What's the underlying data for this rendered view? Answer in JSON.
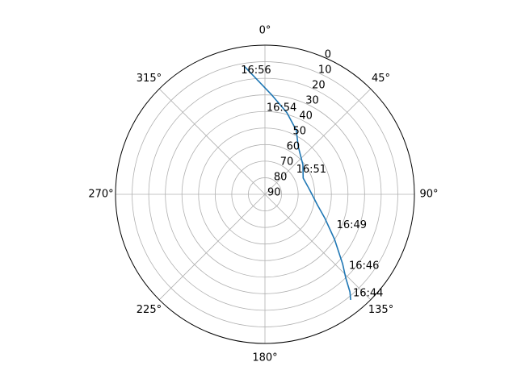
{
  "chart_data": {
    "type": "polar-line",
    "theta_direction": "clockwise",
    "theta_zero": "top",
    "theta_ticks": [
      {
        "deg": 0,
        "label": "0°"
      },
      {
        "deg": 45,
        "label": "45°"
      },
      {
        "deg": 90,
        "label": "90°"
      },
      {
        "deg": 135,
        "label": "135°"
      },
      {
        "deg": 180,
        "label": "180°"
      },
      {
        "deg": 225,
        "label": "225°"
      },
      {
        "deg": 270,
        "label": "270°"
      },
      {
        "deg": 315,
        "label": "315°"
      }
    ],
    "r_axis": {
      "min": 0,
      "max": 90,
      "inverted": true,
      "ticks": [
        "0",
        "10",
        "20",
        "30",
        "40",
        "50",
        "60",
        "70",
        "80",
        "90"
      ]
    },
    "grid": true,
    "series": [
      {
        "color": "#1f77b4",
        "points": [
          {
            "az": 141.0,
            "el": 8
          },
          {
            "az": 139.0,
            "el": 12
          },
          {
            "az": 136.0,
            "el": 20
          },
          {
            "az": 132.0,
            "el": 27
          },
          {
            "az": 123.0,
            "el": 40
          },
          {
            "az": 112.0,
            "el": 51
          },
          {
            "az": 101.0,
            "el": 58
          },
          {
            "az": 84.0,
            "el": 63
          },
          {
            "az": 67.0,
            "el": 65
          },
          {
            "az": 52.0,
            "el": 61
          },
          {
            "az": 35.0,
            "el": 55
          },
          {
            "az": 26.0,
            "el": 47
          },
          {
            "az": 15.0,
            "el": 39
          },
          {
            "az": 4.0,
            "el": 30
          },
          {
            "az": -9.0,
            "el": 12
          }
        ]
      }
    ],
    "time_labels": [
      {
        "text": "16:44",
        "az": 138.5,
        "el": 10
      },
      {
        "text": "16:46",
        "az": 130.5,
        "el": 23.5
      },
      {
        "text": "16:49",
        "az": 113.5,
        "el": 43
      },
      {
        "text": "16:51",
        "az": 51.5,
        "el": 66
      },
      {
        "text": "16:54",
        "az": 1.0,
        "el": 38
      },
      {
        "text": "16:56",
        "az": -11.0,
        "el": 14
      }
    ]
  }
}
